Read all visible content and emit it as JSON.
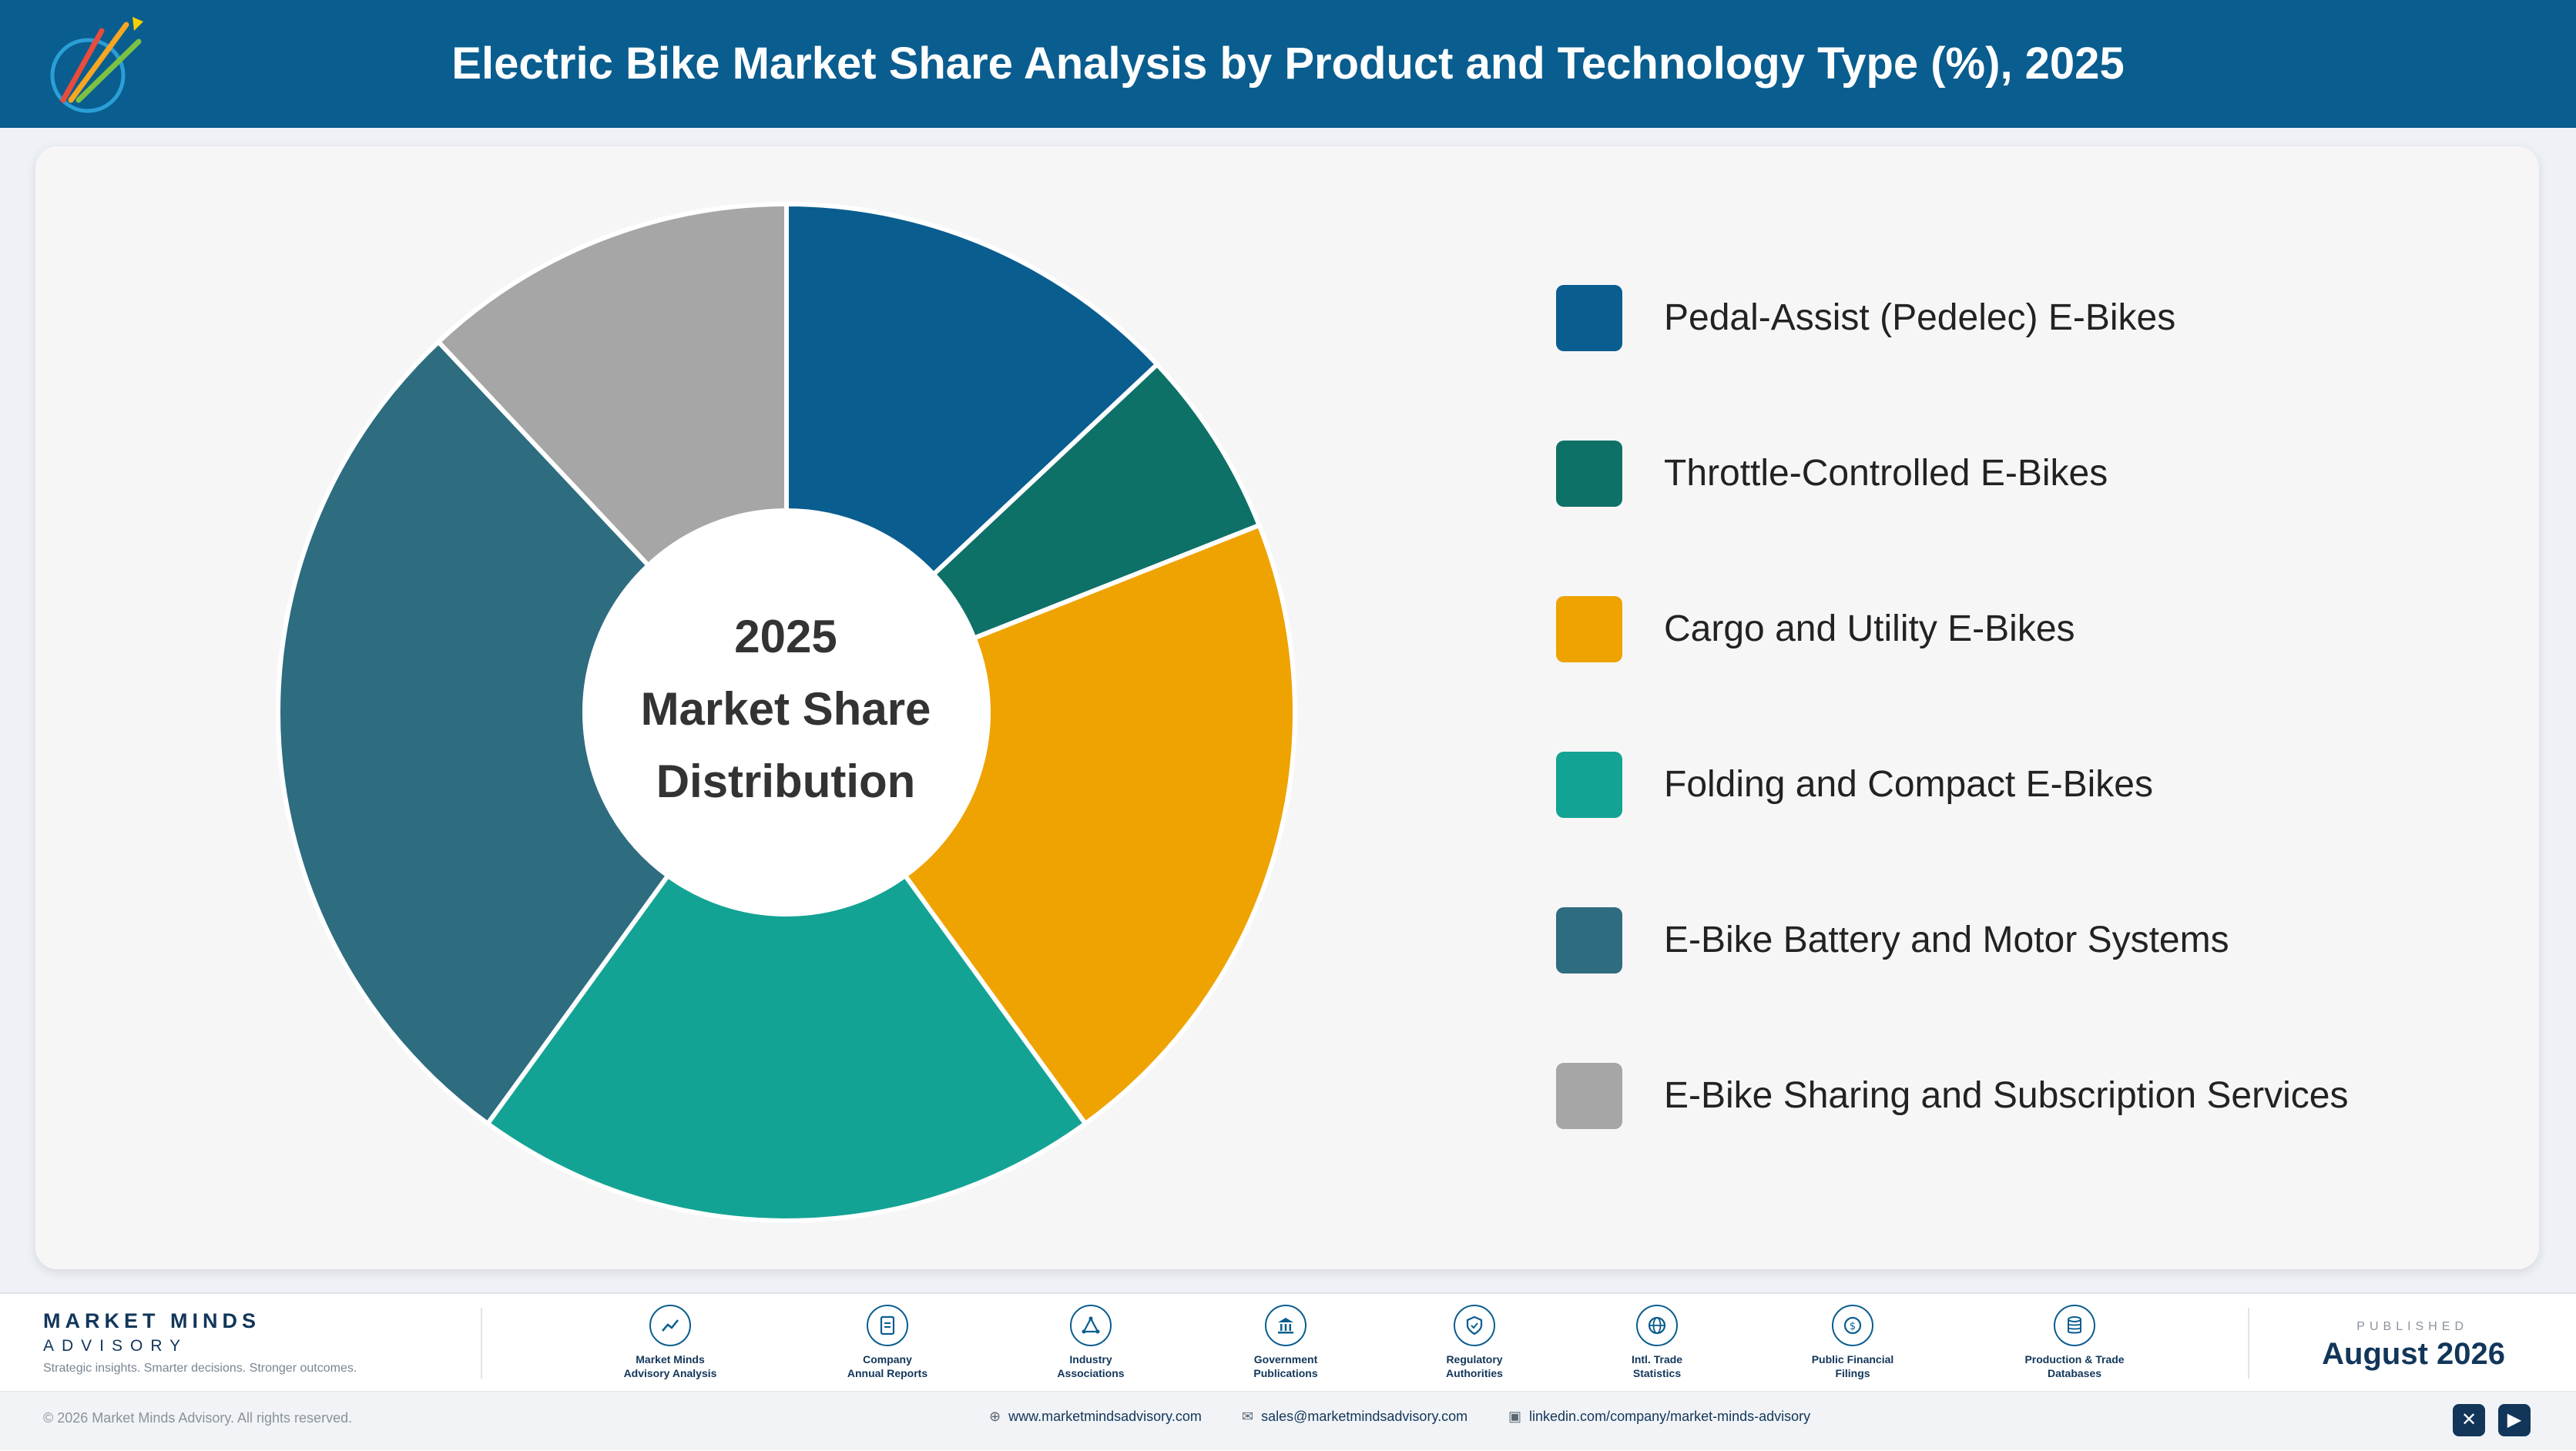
{
  "header": {
    "title": "Electric Bike Market Share Analysis by Product and Technology Type (%), 2025"
  },
  "chart_data": {
    "type": "pie",
    "title": "Electric Bike Market Share Analysis by Product and Technology Type (%), 2025",
    "center_label": [
      "2025",
      "Market Share",
      "Distribution"
    ],
    "categories": [
      "Pedal-Assist (Pedelec) E-Bikes",
      "Throttle-Controlled E-Bikes",
      "Cargo and Utility E-Bikes",
      "Folding and Compact E-Bikes",
      "E-Bike Battery and Motor Systems",
      "E-Bike Sharing and Subscription Services"
    ],
    "values": [
      13,
      6,
      21,
      20,
      28,
      12
    ],
    "colors": [
      "#0a5d8f",
      "#0e7168",
      "#eea300",
      "#13a394",
      "#2e6c80",
      "#a6a6a6"
    ],
    "legend_position": "right"
  },
  "footer": {
    "brand_name": "MARKET MINDS",
    "brand_sub": "ADVISORY",
    "tagline": "Strategic insights. Smarter decisions. Stronger outcomes.",
    "sources": [
      {
        "icon": "chart-line-icon",
        "line1": "Market Minds",
        "line2": "Advisory Analysis"
      },
      {
        "icon": "document-icon",
        "line1": "Company",
        "line2": "Annual Reports"
      },
      {
        "icon": "network-icon",
        "line1": "Industry",
        "line2": "Associations"
      },
      {
        "icon": "government-building-icon",
        "line1": "Government",
        "line2": "Publications"
      },
      {
        "icon": "shield-icon",
        "line1": "Regulatory",
        "line2": "Authorities"
      },
      {
        "icon": "globe-icon",
        "line1": "Intl. Trade",
        "line2": "Statistics"
      },
      {
        "icon": "coin-icon",
        "line1": "Public Financial",
        "line2": "Filings"
      },
      {
        "icon": "database-icon",
        "line1": "Production & Trade",
        "line2": "Databases"
      }
    ],
    "published_label": "PUBLISHED",
    "published_date": "August 2026"
  },
  "bottom_bar": {
    "copyright": "© 2026 Market Minds Advisory. All rights reserved.",
    "website": "www.marketmindsadvisory.com",
    "email": "sales@marketmindsadvisory.com",
    "linkedin": "linkedin.com/company/market-minds-advisory"
  }
}
